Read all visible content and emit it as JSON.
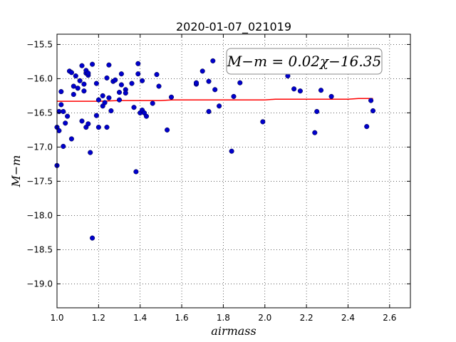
{
  "chart_data": {
    "type": "scatter",
    "title": "2020-01-07_021019",
    "xlabel": "airmass",
    "ylabel": "M−m",
    "xlim": [
      1.0,
      2.7
    ],
    "ylim": [
      -19.35,
      -15.35
    ],
    "y_inverted": true,
    "grid": true,
    "x_ticks": [
      1.0,
      1.2,
      1.4,
      1.6,
      1.8,
      2.0,
      2.2,
      2.4,
      2.6
    ],
    "x_tick_labels": [
      "1.0",
      "1.2",
      "1.4",
      "1.6",
      "1.8",
      "2.0",
      "2.2",
      "2.4",
      "2.6"
    ],
    "y_ticks": [
      -15.5,
      -16.0,
      -16.5,
      -17.0,
      -17.5,
      -18.0,
      -18.5,
      -19.0
    ],
    "y_tick_labels": [
      "−15.5",
      "−16.0",
      "−16.5",
      "−17.0",
      "−17.5",
      "−18.0",
      "−18.5",
      "−19.0"
    ],
    "annotation": "M−m = 0.02χ−16.35",
    "annotation_placement": "top-right",
    "colors": {
      "points": "#0000cc",
      "fit_line": "#ff0000"
    },
    "fit_line": {
      "x": [
        1.0,
        1.1,
        1.2,
        1.3,
        1.4,
        1.5,
        1.55,
        1.6,
        1.7,
        1.8,
        1.9,
        2.0,
        2.05,
        2.1,
        2.2,
        2.3,
        2.4,
        2.45,
        2.5,
        2.52
      ],
      "y": [
        -16.33,
        -16.33,
        -16.33,
        -16.32,
        -16.32,
        -16.32,
        -16.31,
        -16.31,
        -16.31,
        -16.31,
        -16.31,
        -16.31,
        -16.3,
        -16.3,
        -16.3,
        -16.3,
        -16.3,
        -16.29,
        -16.29,
        -16.29
      ]
    },
    "points": {
      "x": [
        1.0,
        1.0,
        1.01,
        1.01,
        1.02,
        1.02,
        1.03,
        1.03,
        1.04,
        1.05,
        1.06,
        1.07,
        1.07,
        1.08,
        1.08,
        1.09,
        1.1,
        1.11,
        1.12,
        1.12,
        1.13,
        1.13,
        1.14,
        1.14,
        1.14,
        1.15,
        1.15,
        1.15,
        1.16,
        1.17,
        1.17,
        1.19,
        1.19,
        1.2,
        1.2,
        1.22,
        1.22,
        1.23,
        1.24,
        1.24,
        1.25,
        1.25,
        1.26,
        1.27,
        1.28,
        1.3,
        1.3,
        1.31,
        1.31,
        1.33,
        1.33,
        1.36,
        1.37,
        1.38,
        1.39,
        1.39,
        1.4,
        1.41,
        1.41,
        1.42,
        1.43,
        1.46,
        1.48,
        1.49,
        1.53,
        1.55,
        1.67,
        1.67,
        1.7,
        1.73,
        1.73,
        1.75,
        1.76,
        1.78,
        1.84,
        1.85,
        1.88,
        1.99,
        2.11,
        2.14,
        2.17,
        2.24,
        2.25,
        2.27,
        2.32,
        2.49,
        2.51,
        2.52
      ],
      "y": [
        -17.27,
        -16.71,
        -16.48,
        -16.76,
        -16.38,
        -16.19,
        -16.48,
        -16.99,
        -16.65,
        -16.55,
        -15.89,
        -15.91,
        -16.88,
        -16.11,
        -16.23,
        -15.96,
        -16.14,
        -16.03,
        -16.62,
        -15.81,
        -16.18,
        -16.08,
        -15.92,
        -15.88,
        -16.71,
        -15.95,
        -15.92,
        -16.66,
        -17.08,
        -18.33,
        -15.79,
        -16.54,
        -16.07,
        -16.71,
        -16.31,
        -16.25,
        -16.4,
        -16.35,
        -16.71,
        -15.99,
        -15.8,
        -16.28,
        -16.47,
        -16.04,
        -16.02,
        -16.2,
        -16.31,
        -15.93,
        -16.09,
        -16.16,
        -16.21,
        -16.07,
        -16.42,
        -17.36,
        -15.93,
        -15.78,
        -16.5,
        -16.03,
        -16.46,
        -16.5,
        -16.55,
        -16.36,
        -15.94,
        -16.11,
        -16.75,
        -16.27,
        -16.08,
        -16.06,
        -15.89,
        -16.04,
        -16.48,
        -15.74,
        -16.16,
        -16.4,
        -17.06,
        -16.26,
        -16.06,
        -16.63,
        -15.96,
        -16.15,
        -16.18,
        -16.79,
        -16.48,
        -16.17,
        -16.26,
        -16.7,
        -16.32,
        -16.47
      ]
    }
  }
}
